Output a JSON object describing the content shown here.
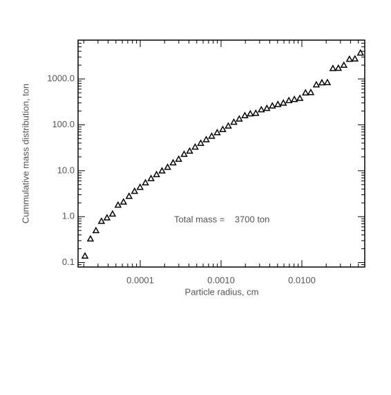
{
  "chart_data": {
    "type": "scatter",
    "xlabel": "Particle radius, cm",
    "ylabel": "Cummulative mass distribution, ton",
    "annotation": "Total mass =    3700 ton",
    "xlog": true,
    "ylog": true,
    "color": "#000000",
    "marker": "triangle-open",
    "xlim": [
      1.7e-05,
      0.06
    ],
    "ylim": [
      0.08,
      7000
    ],
    "xticks": [
      {
        "value": 0.0001,
        "label": "0.0001"
      },
      {
        "value": 0.001,
        "label": "0.0010"
      },
      {
        "value": 0.01,
        "label": "0.0100"
      }
    ],
    "yticks": [
      0.1,
      {
        "value": 1,
        "label": "1.0"
      },
      {
        "value": 10,
        "label": "10.0"
      },
      {
        "value": 100,
        "label": "100.0"
      },
      {
        "value": 1000,
        "label": "1000.0"
      }
    ],
    "series": [
      {
        "x": [
          2.07e-05,
          2.42e-05,
          2.83e-05,
          3.31e-05,
          3.88e-05,
          4.54e-05,
          5.31e-05,
          6.21e-05,
          7.27e-05,
          8.5e-05,
          9.95e-05,
          0.000116,
          0.000136,
          0.000159,
          0.000186,
          0.000218,
          0.000255,
          0.000299,
          0.000349,
          0.000409,
          0.000478,
          0.00056,
          0.000655,
          0.000766,
          0.000896,
          0.00105,
          0.00123,
          0.00144,
          0.00168,
          0.00197,
          0.0023,
          0.00269,
          0.00315,
          0.00369,
          0.00431,
          0.00505,
          0.0059,
          0.00691,
          0.00808,
          0.00945,
          0.0111,
          0.0129,
          0.0151,
          0.0177,
          0.0207,
          0.0242,
          0.0283,
          0.0331,
          0.0388,
          0.0454,
          0.0531
        ],
        "values": [
          0.14,
          0.33,
          0.5,
          0.8,
          0.95,
          1.15,
          1.8,
          2.1,
          2.8,
          3.6,
          4.4,
          5.5,
          6.8,
          8.3,
          10,
          12,
          15,
          18,
          23,
          27,
          33,
          40,
          48,
          57,
          68,
          80,
          95,
          115,
          135,
          160,
          175,
          180,
          215,
          230,
          260,
          280,
          300,
          340,
          360,
          380,
          500,
          510,
          750,
          830,
          840,
          1700,
          1720,
          2000,
          2700,
          2750,
          3700
        ]
      }
    ]
  }
}
